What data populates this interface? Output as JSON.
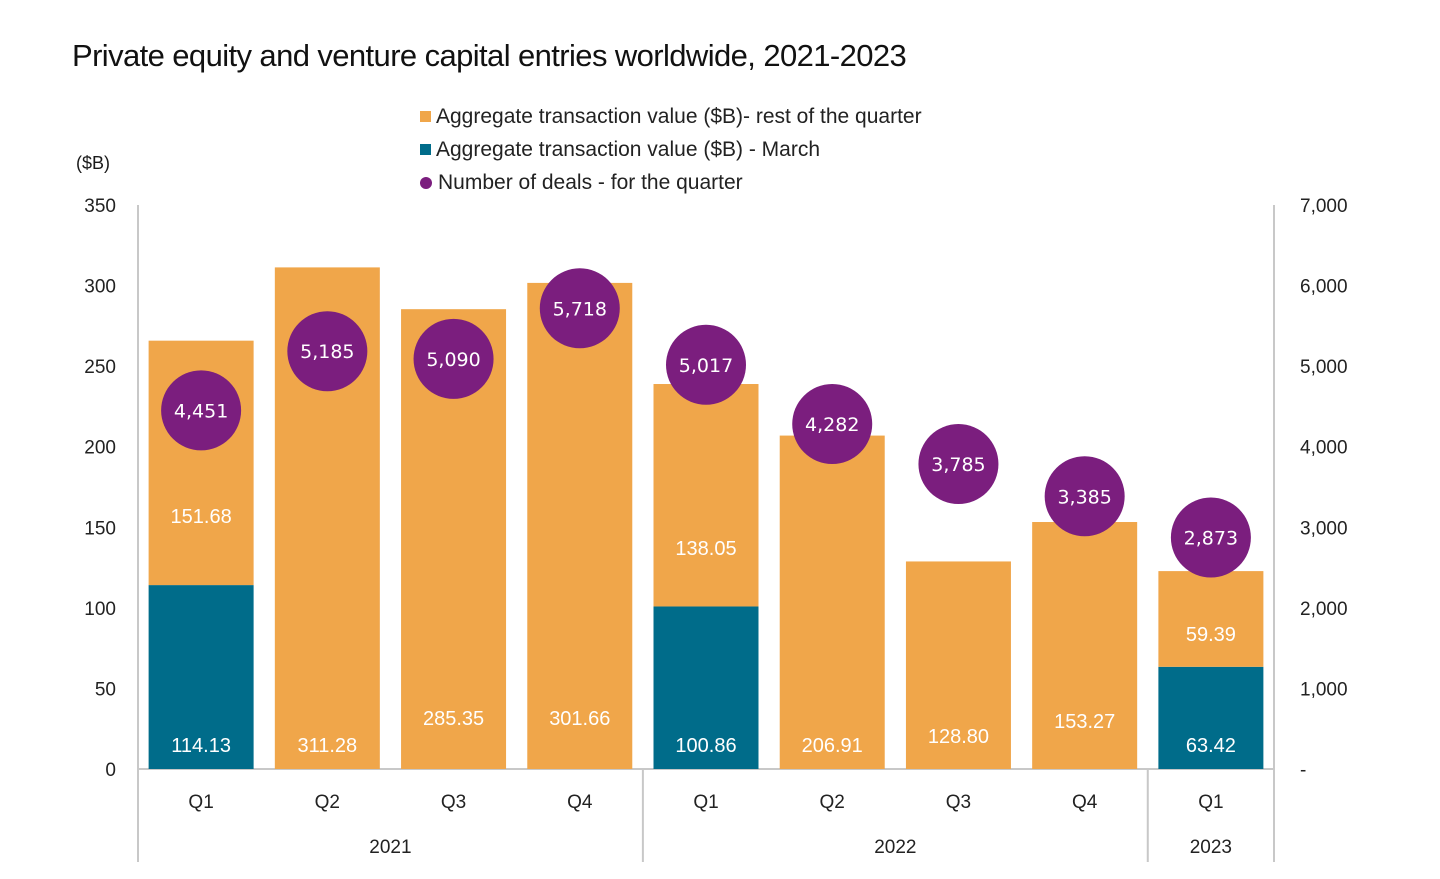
{
  "title": "Private equity and venture capital entries worldwide, 2021-2023",
  "unit_label": "($B)",
  "colors": {
    "rest_of_quarter": "#F0A64A",
    "march": "#006C8A",
    "deals": "#7B1E7E",
    "axis": "#c8c8c8"
  },
  "legend": [
    {
      "label": "Aggregate transaction value ($B)- rest of the quarter",
      "shape": "square",
      "color_key": "rest_of_quarter"
    },
    {
      "label": "Aggregate transaction value ($B) - March",
      "shape": "square",
      "color_key": "march"
    },
    {
      "label": "Number of deals - for the quarter",
      "shape": "circle",
      "color_key": "deals"
    }
  ],
  "chart_data": {
    "type": "bar",
    "stacked": true,
    "title": "Private equity and venture capital entries worldwide, 2021-2023",
    "ylabel": "($B)",
    "ylim": [
      0,
      350
    ],
    "yticks": [
      "0",
      "50",
      "100",
      "150",
      "200",
      "250",
      "300",
      "350"
    ],
    "y2lim": [
      0,
      7000
    ],
    "y2ticks": [
      "-",
      "1,000",
      "2,000",
      "3,000",
      "4,000",
      "5,000",
      "6,000",
      "7,000"
    ],
    "legend_position": "top-center",
    "grid": false,
    "categories": [
      "Q1",
      "Q2",
      "Q3",
      "Q4",
      "Q1",
      "Q2",
      "Q3",
      "Q4",
      "Q1"
    ],
    "groups": [
      {
        "label": "2021",
        "count": 4
      },
      {
        "label": "2022",
        "count": 4
      },
      {
        "label": "2023",
        "count": 1
      }
    ],
    "series": [
      {
        "name": "Aggregate transaction value ($B) - March",
        "type": "bar",
        "axis": "left",
        "values": [
          114.13,
          null,
          null,
          null,
          100.86,
          null,
          null,
          null,
          63.42
        ],
        "labels": [
          "114.13",
          "",
          "",
          "",
          "100.86",
          "",
          "",
          "",
          "63.42"
        ]
      },
      {
        "name": "Aggregate transaction value ($B)- rest of the quarter",
        "type": "bar",
        "axis": "left",
        "values": [
          151.68,
          311.28,
          285.35,
          301.66,
          138.05,
          206.91,
          128.8,
          153.27,
          59.39
        ],
        "labels": [
          "151.68",
          "311.28",
          "285.35",
          "301.66",
          "138.05",
          "206.91",
          "128.80",
          "153.27",
          "59.39"
        ]
      },
      {
        "name": "Number of deals - for the quarter",
        "type": "scatter",
        "axis": "right",
        "values": [
          4451,
          5185,
          5090,
          5718,
          5017,
          4282,
          3785,
          3385,
          2873
        ],
        "labels": [
          "4,451",
          "5,185",
          "5,090",
          "5,718",
          "5,017",
          "4,282",
          "3,785",
          "3,385",
          "2,873"
        ]
      }
    ]
  }
}
